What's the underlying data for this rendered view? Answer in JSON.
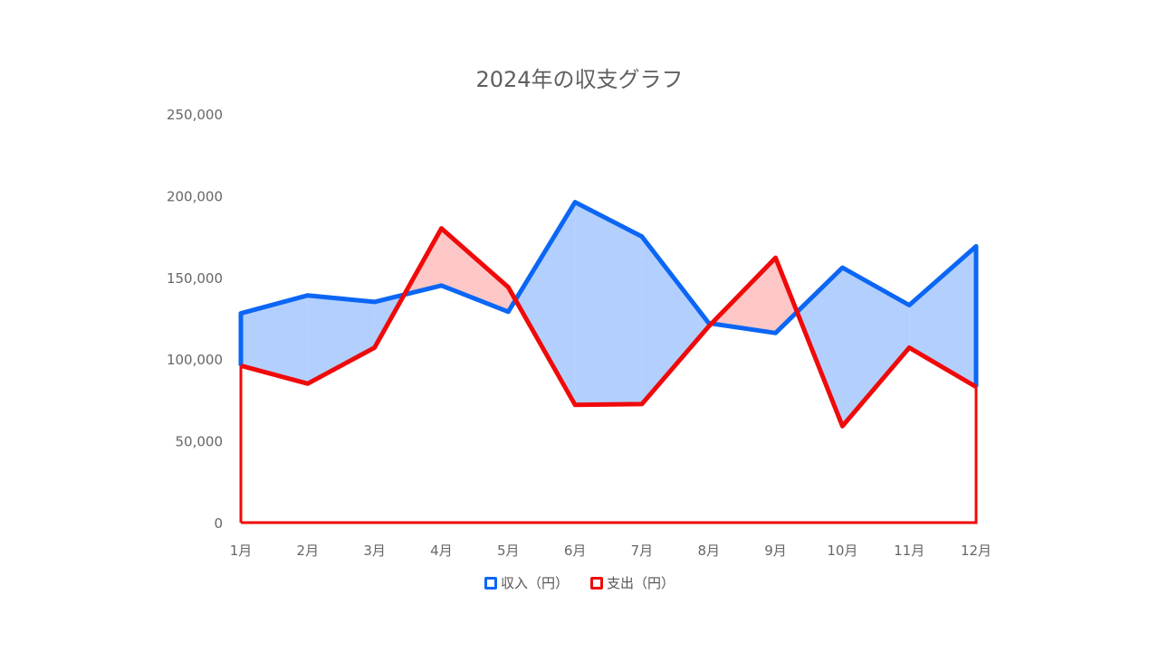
{
  "chart_data": {
    "type": "area",
    "title": "2024年の収支グラフ",
    "xlabel": "",
    "ylabel": "",
    "categories": [
      "1月",
      "2月",
      "3月",
      "4月",
      "5月",
      "6月",
      "7月",
      "8月",
      "9月",
      "10月",
      "11月",
      "12月"
    ],
    "series": [
      {
        "name": "収入（円）",
        "color": "#0b66f5",
        "values": [
          128000,
          139000,
          135000,
          145000,
          129000,
          196000,
          175000,
          122000,
          116000,
          156000,
          133000,
          169000
        ]
      },
      {
        "name": "支出（円）",
        "color": "#f00a0a",
        "values": [
          96000,
          85000,
          107000,
          180000,
          144000,
          72000,
          72500,
          120000,
          162000,
          59000,
          107000,
          83000
        ]
      }
    ],
    "ylim": [
      0,
      250000
    ],
    "yticks": [
      0,
      50000,
      100000,
      150000,
      200000,
      250000
    ],
    "ytick_labels": [
      "0",
      "50,000",
      "100,000",
      "150,000",
      "200,000",
      "250,000"
    ],
    "grid": false,
    "legend": "bottom",
    "fill_colors": {
      "income_above": "#b3cffd",
      "expense_above": "#fdc7c7"
    }
  }
}
